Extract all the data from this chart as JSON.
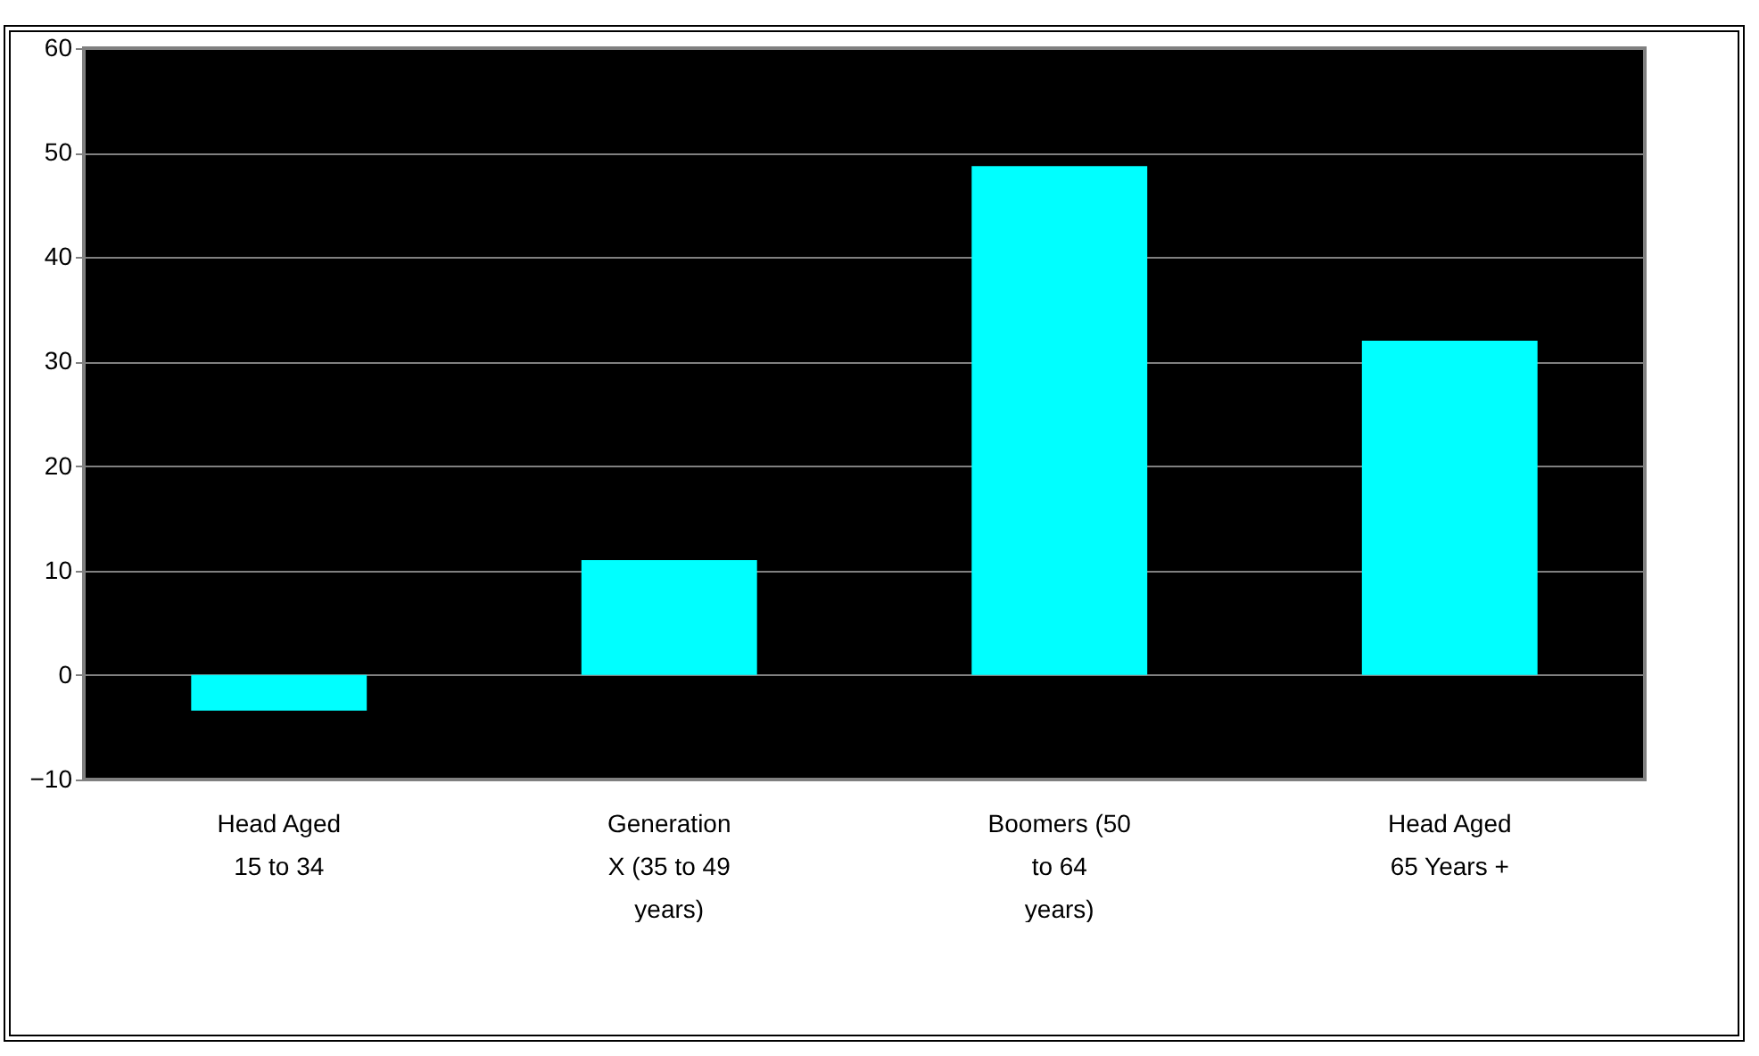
{
  "chart_data": {
    "type": "bar",
    "categories": [
      "Head Aged 15 to 34",
      "Generation X (35 to 49 years)",
      "Boomers (50 to 64 years)",
      "Head Aged 65 Years +"
    ],
    "values": [
      -3.4,
      11,
      48.7,
      32
    ],
    "color": "#00ffff",
    "ylim": [
      -10,
      60
    ],
    "yticks": [
      -10,
      0,
      10,
      20,
      30,
      40,
      50,
      60
    ],
    "grid": "y"
  }
}
